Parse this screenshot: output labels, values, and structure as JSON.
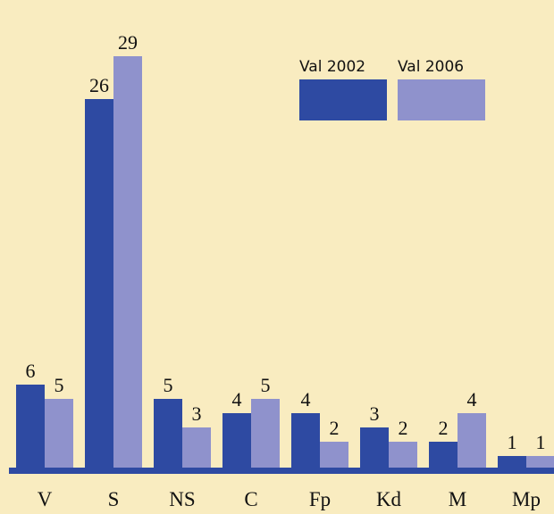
{
  "chart_data": {
    "type": "bar",
    "categories": [
      "V",
      "S",
      "NS",
      "C",
      "Fp",
      "Kd",
      "M",
      "Mp"
    ],
    "series": [
      {
        "name": "Val 2002",
        "color": "#2e4aa2",
        "values": [
          6,
          26,
          5,
          4,
          4,
          3,
          2,
          1
        ]
      },
      {
        "name": "Val 2006",
        "color": "#8f92cc",
        "values": [
          5,
          29,
          3,
          5,
          2,
          2,
          4,
          1
        ]
      }
    ],
    "ylim": [
      0,
      30
    ],
    "legend": "top-right"
  }
}
